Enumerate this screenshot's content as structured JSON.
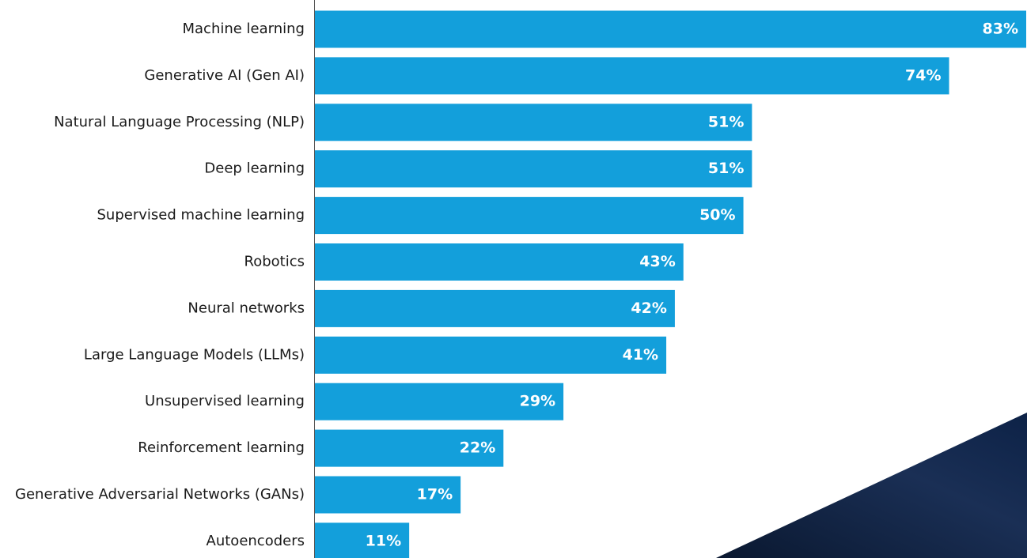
{
  "chart_data": {
    "type": "bar",
    "categories": [
      "Machine learning",
      "Generative AI (Gen AI)",
      "Natural Language Processing (NLP)",
      "Deep learning",
      "Supervised machine learning",
      "Robotics",
      "Neural networks",
      "Large Language Models (LLMs)",
      "Unsupervised learning",
      "Reinforcement learning",
      "Generative Adversarial Networks (GANs)",
      "Autoencoders"
    ],
    "values": [
      83,
      74,
      51,
      51,
      50,
      43,
      42,
      41,
      29,
      22,
      17,
      11
    ],
    "value_labels": [
      "83%",
      "74%",
      "51%",
      "51%",
      "50%",
      "43%",
      "42%",
      "41%",
      "29%",
      "22%",
      "17%",
      "11%"
    ],
    "color": "#139fdb",
    "orientation": "horizontal"
  }
}
